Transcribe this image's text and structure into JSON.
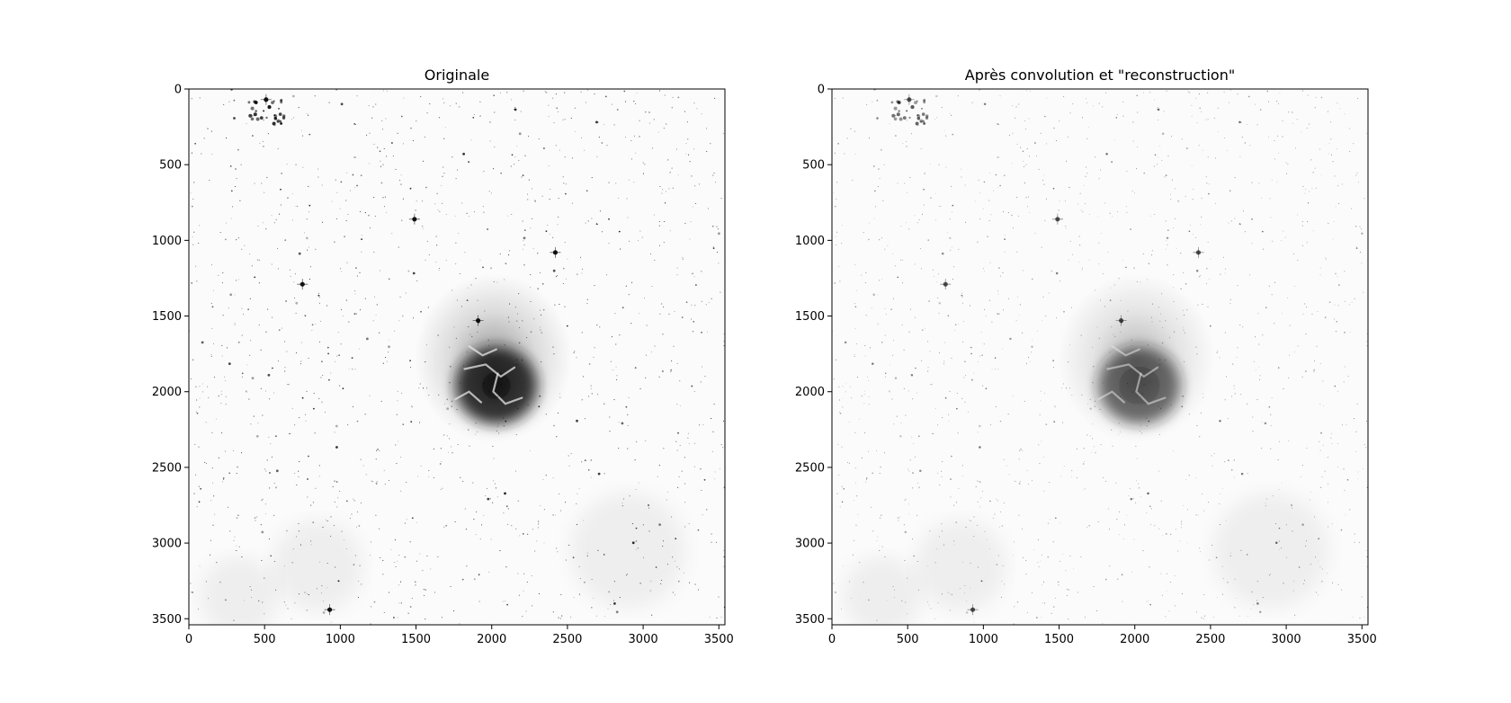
{
  "chart_data": [
    {
      "type": "heatmap",
      "title": "Originale",
      "colormap": "gray_r",
      "xlim": [
        0,
        3540
      ],
      "ylim": [
        3540,
        0
      ],
      "xticks": [
        0,
        500,
        1000,
        1500,
        2000,
        2500,
        3000,
        3500
      ],
      "yticks": [
        0,
        500,
        1000,
        1500,
        2000,
        2500,
        3000,
        3500
      ],
      "xtick_labels": [
        "0",
        "500",
        "1000",
        "1500",
        "2000",
        "2500",
        "3000",
        "3500"
      ],
      "ytick_labels": [
        "0",
        "500",
        "1000",
        "1500",
        "2000",
        "2500",
        "3000",
        "3500"
      ],
      "nebula_center": [
        2030,
        1960
      ],
      "bright_stars": [
        [
          2420,
          1080
        ],
        [
          1490,
          860
        ],
        [
          750,
          1290
        ],
        [
          930,
          3440
        ],
        [
          1910,
          1530
        ],
        [
          510,
          70
        ]
      ],
      "grid": false
    },
    {
      "type": "heatmap",
      "title": "Après convolution et \"reconstruction\"",
      "colormap": "gray_r",
      "xlim": [
        0,
        3540
      ],
      "ylim": [
        3540,
        0
      ],
      "xticks": [
        0,
        500,
        1000,
        1500,
        2000,
        2500,
        3000,
        3500
      ],
      "yticks": [
        0,
        500,
        1000,
        1500,
        2000,
        2500,
        3000,
        3500
      ],
      "xtick_labels": [
        "0",
        "500",
        "1000",
        "1500",
        "2000",
        "2500",
        "3000",
        "3500"
      ],
      "ytick_labels": [
        "0",
        "500",
        "1000",
        "1500",
        "2000",
        "2500",
        "3000",
        "3500"
      ],
      "nebula_center": [
        2030,
        1960
      ],
      "bright_stars": [
        [
          2420,
          1080
        ],
        [
          1490,
          860
        ],
        [
          750,
          1290
        ],
        [
          930,
          3440
        ],
        [
          1910,
          1530
        ],
        [
          510,
          70
        ]
      ],
      "grid": false
    }
  ]
}
